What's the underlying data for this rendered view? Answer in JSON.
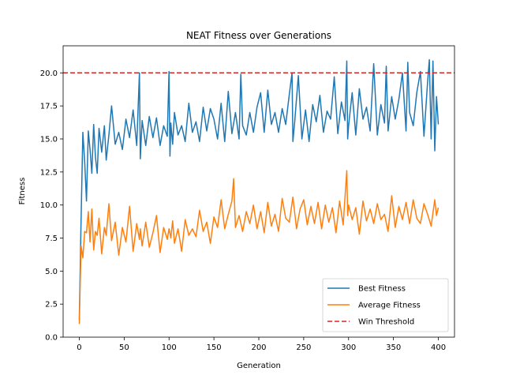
{
  "chart_data": {
    "type": "line",
    "title": "NEAT Fitness over Generations",
    "xlabel": "Generation",
    "ylabel": "Fitness",
    "xlim": [
      -18,
      418
    ],
    "ylim": [
      0,
      22.05
    ],
    "xticks": [
      0,
      50,
      100,
      150,
      200,
      250,
      300,
      350,
      400
    ],
    "yticks": [
      0.0,
      2.5,
      5.0,
      7.5,
      10.0,
      12.5,
      15.0,
      17.5,
      20.0
    ],
    "ytick_labels": [
      "0.0",
      "2.5",
      "5.0",
      "7.5",
      "10.0",
      "12.5",
      "15.0",
      "17.5",
      "20.0"
    ],
    "legend_position": "lower-right",
    "series": [
      {
        "name": "Best Fitness",
        "color": "#1f77b4",
        "style": "solid",
        "x": [
          0,
          2,
          4,
          6,
          8,
          10,
          12,
          14,
          16,
          18,
          20,
          22,
          25,
          28,
          30,
          33,
          36,
          40,
          44,
          48,
          52,
          56,
          60,
          64,
          67,
          68,
          70,
          74,
          78,
          82,
          86,
          90,
          94,
          98,
          100,
          101,
          102,
          104,
          106,
          110,
          114,
          118,
          122,
          126,
          130,
          134,
          138,
          142,
          146,
          150,
          154,
          158,
          162,
          166,
          170,
          174,
          178,
          180,
          182,
          186,
          190,
          194,
          198,
          202,
          206,
          210,
          214,
          218,
          222,
          226,
          230,
          234,
          237,
          238,
          240,
          244,
          248,
          252,
          256,
          260,
          264,
          268,
          272,
          276,
          280,
          284,
          288,
          292,
          296,
          298,
          299,
          300,
          304,
          308,
          312,
          316,
          320,
          324,
          328,
          332,
          336,
          340,
          342,
          344,
          348,
          352,
          356,
          360,
          364,
          366,
          368,
          372,
          376,
          380,
          384,
          388,
          390,
          392,
          394,
          396,
          398,
          400
        ],
        "values": [
          1.3,
          9.0,
          15.5,
          13.3,
          10.3,
          15.6,
          14.2,
          12.4,
          16.1,
          13.6,
          12.4,
          15.8,
          14.0,
          16.0,
          13.4,
          15.3,
          17.5,
          14.6,
          15.5,
          14.2,
          16.5,
          15.1,
          17.2,
          14.5,
          20.0,
          13.5,
          16.4,
          14.5,
          16.7,
          15.1,
          16.6,
          14.5,
          16.0,
          15.2,
          20.1,
          13.7,
          16.2,
          14.6,
          17.0,
          15.3,
          16.0,
          14.8,
          17.7,
          15.5,
          16.3,
          14.8,
          17.4,
          15.6,
          17.3,
          16.5,
          15.0,
          17.7,
          14.8,
          18.6,
          15.4,
          17.0,
          15.0,
          19.9,
          16.0,
          15.3,
          17.0,
          15.5,
          17.4,
          18.5,
          15.5,
          18.7,
          16.1,
          17.0,
          15.5,
          17.3,
          16.1,
          18.4,
          20.0,
          14.8,
          16.3,
          19.8,
          15.0,
          17.2,
          14.8,
          17.6,
          16.3,
          18.3,
          15.5,
          17.1,
          16.5,
          19.7,
          15.4,
          17.8,
          16.4,
          20.9,
          15.0,
          16.0,
          18.5,
          15.3,
          18.8,
          16.5,
          17.4,
          15.6,
          20.7,
          15.3,
          17.6,
          16.2,
          20.5,
          15.6,
          18.2,
          16.5,
          18.0,
          20.0,
          15.6,
          20.8,
          17.0,
          16.0,
          18.5,
          20.1,
          15.2,
          19.3,
          21.0,
          15.0,
          20.9,
          14.1,
          18.2,
          16.1
        ]
      },
      {
        "name": "Average Fitness",
        "color": "#ff7f0e",
        "style": "solid",
        "x": [
          0,
          2,
          4,
          6,
          8,
          10,
          12,
          14,
          16,
          18,
          20,
          22,
          25,
          28,
          30,
          33,
          36,
          40,
          44,
          48,
          52,
          56,
          60,
          64,
          67,
          68,
          70,
          74,
          78,
          82,
          86,
          90,
          94,
          98,
          100,
          102,
          104,
          106,
          110,
          114,
          118,
          122,
          126,
          130,
          134,
          138,
          142,
          146,
          150,
          154,
          158,
          162,
          166,
          170,
          172,
          174,
          178,
          182,
          186,
          190,
          194,
          198,
          202,
          206,
          210,
          214,
          218,
          222,
          226,
          230,
          234,
          238,
          242,
          246,
          250,
          254,
          258,
          262,
          266,
          270,
          274,
          278,
          282,
          286,
          290,
          294,
          298,
          299,
          300,
          304,
          308,
          312,
          316,
          320,
          324,
          328,
          332,
          336,
          340,
          344,
          348,
          352,
          356,
          360,
          364,
          368,
          372,
          376,
          380,
          384,
          388,
          392,
          396,
          398,
          400
        ],
        "values": [
          1.0,
          6.9,
          6.0,
          8.0,
          7.9,
          9.5,
          7.2,
          9.7,
          6.6,
          8.0,
          7.7,
          9.0,
          6.3,
          8.3,
          7.7,
          10.1,
          7.3,
          8.7,
          6.2,
          8.3,
          7.2,
          9.9,
          6.5,
          8.6,
          7.4,
          8.2,
          6.9,
          8.7,
          6.8,
          7.9,
          9.2,
          6.4,
          8.3,
          7.4,
          8.2,
          7.5,
          8.8,
          7.1,
          8.2,
          6.5,
          8.9,
          7.7,
          8.2,
          7.6,
          9.6,
          8.0,
          8.7,
          7.1,
          9.1,
          8.3,
          10.4,
          8.2,
          9.3,
          10.3,
          12.0,
          8.3,
          9.2,
          8.0,
          9.5,
          8.6,
          10.0,
          8.2,
          9.5,
          7.9,
          10.2,
          8.4,
          9.3,
          8.0,
          10.5,
          9.0,
          8.7,
          10.6,
          8.2,
          9.7,
          10.4,
          8.5,
          9.9,
          8.6,
          10.2,
          8.2,
          10.0,
          8.7,
          9.8,
          7.9,
          10.3,
          8.5,
          12.6,
          9.2,
          10.0,
          8.9,
          9.8,
          7.8,
          10.3,
          8.8,
          9.7,
          8.6,
          10.1,
          8.9,
          9.3,
          8.0,
          10.7,
          8.3,
          9.9,
          8.9,
          10.2,
          8.6,
          10.4,
          9.0,
          8.6,
          10.1,
          9.3,
          8.4,
          10.4,
          9.2,
          9.8
        ]
      },
      {
        "name": "Win Threshold",
        "color": "#d62728",
        "style": "dashed",
        "value": 20.0
      }
    ]
  }
}
